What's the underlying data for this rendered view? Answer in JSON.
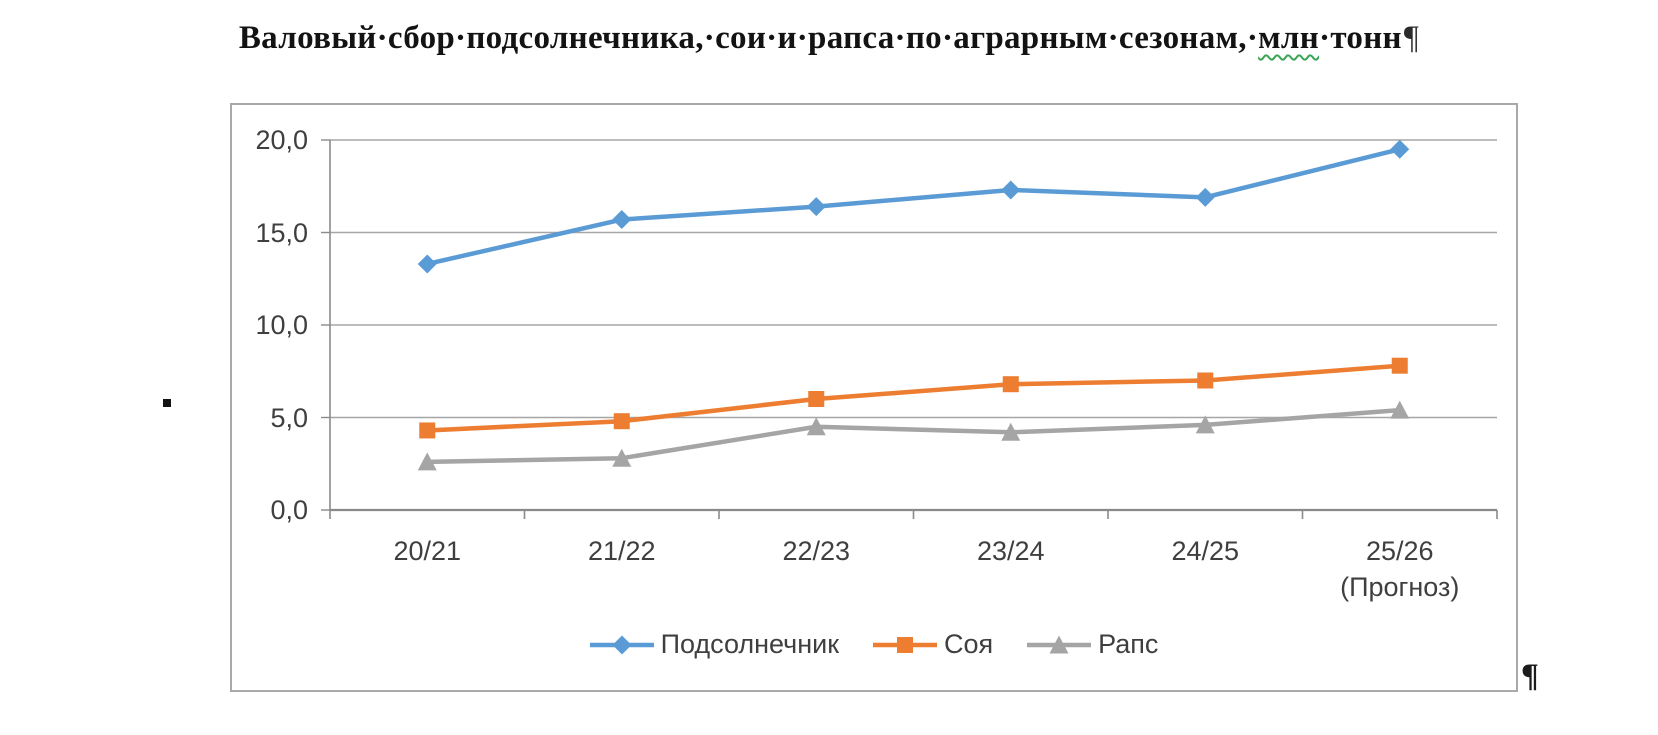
{
  "document": {
    "title_prefix": "Валовый·сбор·подсолнечника,·сои·и·рапса·по·аграрным·сезонам,·",
    "title_grammar_word": "млн",
    "title_suffix": "·тонн",
    "title_pilcrow": "¶",
    "end_pilcrow": "¶",
    "grammar_underline_color": "#3aa655"
  },
  "chart_data": {
    "type": "line",
    "title": "Валовый сбор подсолнечника, сои и рапса по аграрным сезонам, млн тонн",
    "categories": [
      "20/21",
      "21/22",
      "22/23",
      "23/24",
      "24/25",
      "25/26"
    ],
    "category_notes": [
      "",
      "",
      "",
      "",
      "",
      "(Прогноз)"
    ],
    "series": [
      {
        "name": "Подсолнечник",
        "color": "#5B9BD5",
        "marker": "diamond",
        "values": [
          13.3,
          15.7,
          16.4,
          17.3,
          16.9,
          19.5
        ]
      },
      {
        "name": "Соя",
        "color": "#ED7D31",
        "marker": "square",
        "values": [
          4.3,
          4.8,
          6.0,
          6.8,
          7.0,
          7.8
        ]
      },
      {
        "name": "Рапс",
        "color": "#A5A5A5",
        "marker": "triangle",
        "values": [
          2.6,
          2.8,
          4.5,
          4.2,
          4.6,
          5.4
        ]
      }
    ],
    "y_axis": {
      "min": 0,
      "max": 20,
      "step": 5,
      "tick_labels": [
        "0,0",
        "5,0",
        "10,0",
        "15,0",
        "20,0"
      ]
    },
    "xlabel": "",
    "ylabel": "",
    "grid": true,
    "legend_position": "bottom",
    "gridline_color": "#a6a6a6",
    "axis_color": "#8a8a8a",
    "label_color": "#3f3f3f"
  }
}
